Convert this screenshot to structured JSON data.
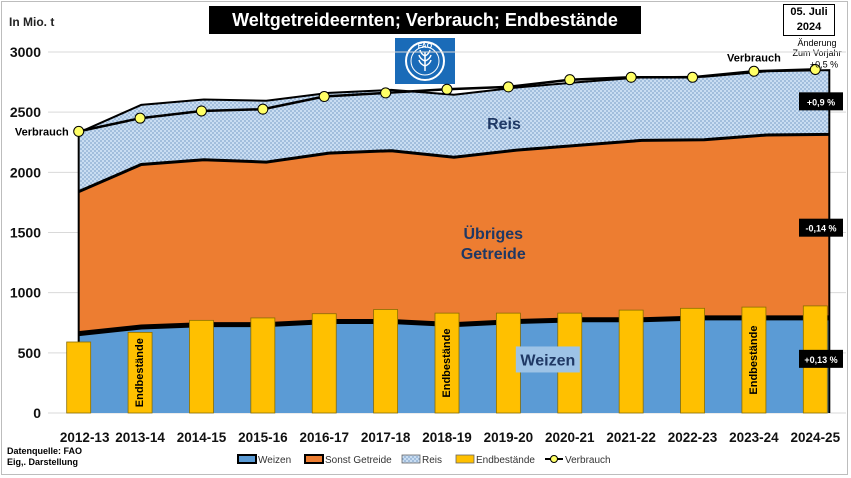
{
  "title": "Weltgetreideernten; Verbrauch;  Endbestände",
  "y_unit": "In Mio. t",
  "date": [
    "05. Juli",
    "2024"
  ],
  "change_note": [
    "Änderung",
    "Zum Vorjahr"
  ],
  "source": [
    "Datenquelle: FAO",
    "Eig,. Darstellung"
  ],
  "logo_text": "FAO",
  "chart_data": {
    "type": "area",
    "xlabel": "",
    "ylabel": "In Mio. t",
    "ylim": [
      0,
      3000
    ],
    "yticks": [
      0,
      500,
      1000,
      1500,
      2000,
      2500,
      3000
    ],
    "grid": true,
    "legend": "bottom",
    "categories": [
      "2012-13",
      "2013-14",
      "2014-15",
      "2015-16",
      "2016-17",
      "2017-18",
      "2018-19",
      "2019-20",
      "2020-21",
      "2021-22",
      "2022-23",
      "2023-24",
      "2024-25"
    ],
    "series": [
      {
        "name": "Weizen",
        "kind": "stacked-area",
        "color": "#5b9bd5",
        "values": [
          660,
          715,
          735,
          735,
          760,
          760,
          735,
          760,
          775,
          775,
          790,
          790,
          790
        ]
      },
      {
        "name": "Sonst Getreide",
        "kind": "stacked-area",
        "color": "#ed7d31",
        "values": [
          1180,
          1350,
          1370,
          1350,
          1400,
          1420,
          1390,
          1425,
          1450,
          1490,
          1480,
          1520,
          1525
        ]
      },
      {
        "name": "Reis",
        "kind": "stacked-area",
        "color": "#c9ddf2",
        "values": [
          490,
          495,
          500,
          510,
          500,
          505,
          520,
          520,
          525,
          525,
          525,
          530,
          535
        ]
      },
      {
        "name": "Endbestände",
        "kind": "bar",
        "color": "#ffc000",
        "values": [
          590,
          670,
          770,
          790,
          825,
          860,
          830,
          830,
          830,
          855,
          870,
          880,
          890
        ]
      },
      {
        "name": "Verbrauch",
        "kind": "line",
        "color": "#ffff66",
        "values": [
          2340,
          2450,
          2510,
          2525,
          2630,
          2660,
          2690,
          2710,
          2770,
          2790,
          2790,
          2840,
          2855
        ]
      }
    ],
    "area_labels": [
      "Reis",
      "Übriges",
      "Getreide",
      "Weizen"
    ],
    "bar_labels": [
      {
        "index": 1,
        "text": "Endbestände"
      },
      {
        "index": 6,
        "text": "Endbestände"
      },
      {
        "index": 11,
        "text": "Endbestände"
      }
    ],
    "line_labels": [
      {
        "index": 0,
        "text": "Verbrauch"
      },
      {
        "index": 11,
        "text": "Verbrauch"
      }
    ],
    "change_labels": [
      {
        "text": "+0,5 %",
        "y": 2855
      },
      {
        "text": "+0,9 %",
        "y": 2590
      },
      {
        "text": "-0,14 %",
        "y": 1540
      },
      {
        "text": "+0,13 %",
        "y": 450
      }
    ]
  }
}
